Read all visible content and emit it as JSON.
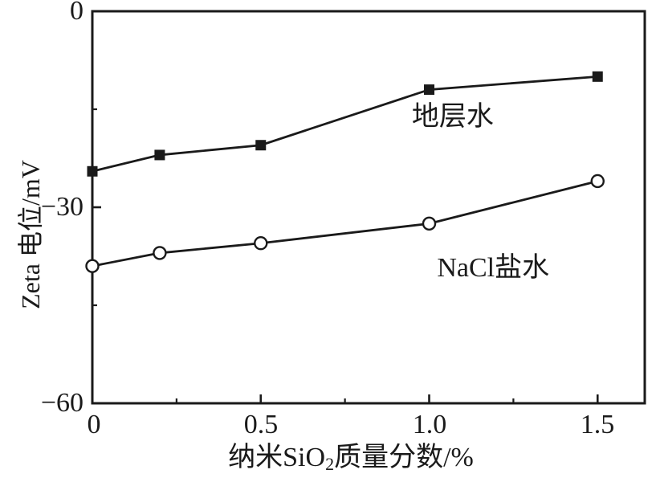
{
  "chart_data": {
    "type": "line",
    "title": "",
    "x": [
      0,
      0.2,
      0.5,
      1.0,
      1.5
    ],
    "series": [
      {
        "name": "地层水",
        "marker": "filled-square",
        "color": "#1a1a1a",
        "values": [
          -24.5,
          -22,
          -20.5,
          -12,
          -10
        ],
        "label_pos": {
          "x": 1.07,
          "y": -16.2
        }
      },
      {
        "name": "NaCl盐水",
        "marker": "open-circle",
        "color": "#1a1a1a",
        "values": [
          -39,
          -37,
          -35.5,
          -32.5,
          -26
        ],
        "label_pos": {
          "x": 1.19,
          "y": -39.4
        }
      }
    ],
    "xlabel": "纳米SiO₂质量分数/%",
    "ylabel": "Zeta 电位/mV",
    "xlim": [
      0,
      1.64
    ],
    "ylim": [
      -60,
      0
    ],
    "x_ticks_major": [
      0,
      0.5,
      1.0,
      1.5
    ],
    "x_tick_labels": [
      "0",
      "0.5",
      "1.0",
      "1.5"
    ],
    "x_ticks_minor": [
      0.25,
      0.75,
      1.25
    ],
    "y_ticks_major": [
      0,
      -30,
      -60
    ],
    "y_tick_labels": [
      "0",
      "−30",
      "−60"
    ],
    "y_ticks_minor": [
      -15,
      -45
    ],
    "grid": false,
    "legend_position": "inline-annotations",
    "axis_color": "#1a1a1a",
    "background": "#ffffff"
  },
  "axis_labels": {
    "x_pre": "纳米SiO",
    "x_sub": "2",
    "x_post": "质量分数/%"
  }
}
